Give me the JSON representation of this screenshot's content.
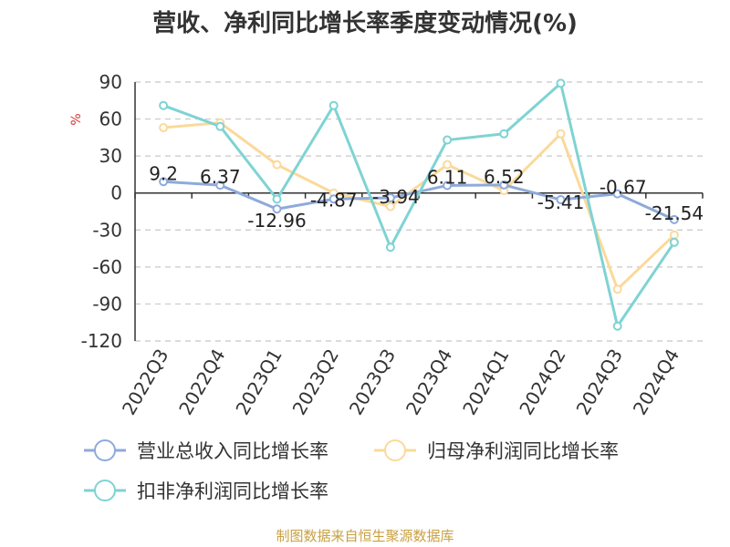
{
  "chart_data": {
    "type": "line",
    "title": "营收、净利同比增长率季度变动情况(%)",
    "ylabel": "%",
    "ylim": [
      -120,
      90
    ],
    "yticks": [
      90,
      60,
      30,
      0,
      -30,
      -60,
      -90,
      -120
    ],
    "categories": [
      "2022Q3",
      "2022Q4",
      "2023Q1",
      "2023Q2",
      "2023Q3",
      "2023Q4",
      "2024Q1",
      "2024Q2",
      "2024Q3",
      "2024Q4"
    ],
    "series": [
      {
        "name": "营业总收入同比增长率",
        "color": "#8eaadb",
        "values": [
          9.2,
          6.37,
          -12.96,
          -4.87,
          -3.94,
          6.11,
          6.52,
          -5.41,
          -0.67,
          -21.54
        ],
        "labels": [
          "9.2",
          "6.37",
          "-12.96",
          "-4.87",
          "-3.94",
          "6.11",
          "6.52",
          "-5.41",
          "-0.67",
          "-21.54"
        ]
      },
      {
        "name": "归母净利润同比增长率",
        "color": "#fbd99a",
        "values": [
          53,
          57,
          23,
          0,
          -11,
          23,
          2,
          48,
          -78,
          -34
        ]
      },
      {
        "name": "扣非净利润同比增长率",
        "color": "#7fd3d3",
        "values": [
          71,
          54,
          -5,
          71,
          -44,
          43,
          48,
          89,
          -108,
          -40
        ]
      }
    ],
    "grid": true,
    "legend_position": "bottom"
  },
  "source_text": "制图数据来自恒生聚源数据库"
}
